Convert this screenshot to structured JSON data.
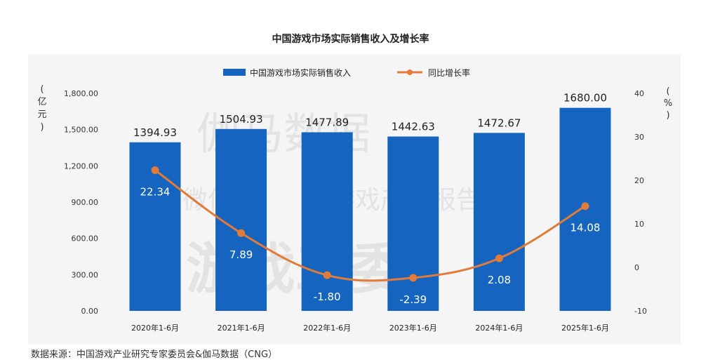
{
  "chart_data": {
    "type": "bar",
    "title": "中国游戏市场实际销售收入及增长率",
    "categories": [
      "2020年1-6月",
      "2021年1-6月",
      "2022年1-6月",
      "2023年1-6月",
      "2024年1-6月",
      "2025年1-6月"
    ],
    "series": [
      {
        "name": "中国游戏市场实际销售收入",
        "type": "bar",
        "axis": "left",
        "color": "#1565c0",
        "values": [
          1394.93,
          1504.93,
          1477.89,
          1442.63,
          1472.67,
          1680.0
        ],
        "labels": [
          "1394.93",
          "1504.93",
          "1477.89",
          "1442.63",
          "1472.67",
          "1680.00"
        ]
      },
      {
        "name": "同比增长率",
        "type": "line",
        "axis": "right",
        "color": "#e07b39",
        "values": [
          22.34,
          7.89,
          -1.8,
          -2.39,
          2.08,
          14.08
        ],
        "labels": [
          "22.34",
          "7.89",
          "-1.80",
          "-2.39",
          "2.08",
          "14.08"
        ]
      }
    ],
    "y_left": {
      "label_chars": [
        "(",
        "亿",
        "元",
        ")"
      ],
      "ylim": [
        0,
        1800
      ],
      "ticks": [
        "0.00",
        "300.00",
        "600.00",
        "900.00",
        "1,200.00",
        "1,500.00",
        "1,800.00"
      ]
    },
    "y_right": {
      "label_chars": [
        "(",
        "%",
        ")"
      ],
      "ylim": [
        -10,
        40
      ],
      "ticks": [
        "-10",
        "0",
        "10",
        "20",
        "30",
        "40"
      ]
    },
    "legend": "top-center",
    "grid": false
  },
  "watermark": [
    "伽马数据",
    "微信号",
    "游戏产业报告",
    "游戏工委"
  ],
  "source_note": "数据来源：中国游戏产业研究专家委员会&伽马数据（CNG）"
}
